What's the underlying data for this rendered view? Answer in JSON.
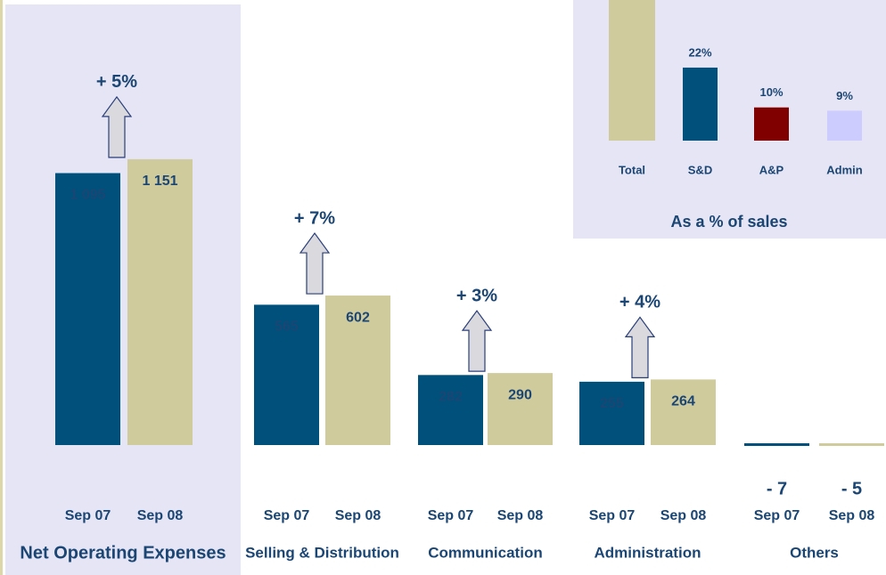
{
  "chart_data": [
    {
      "type": "bar",
      "categories": [
        "Net Operating Expenses",
        "Selling & Distribution",
        "Communication",
        "Administration",
        "Others"
      ],
      "series": [
        {
          "name": "Sep 07",
          "color": "#00507c",
          "values": [
            1095,
            565,
            282,
            255,
            -7
          ],
          "value_labels": [
            "1 095",
            "565",
            "282",
            "255",
            "- 7"
          ]
        },
        {
          "name": "Sep 08",
          "color": "#cfcb9d",
          "values": [
            1151,
            602,
            290,
            264,
            -5
          ],
          "value_labels": [
            "1 151",
            "602",
            "290",
            "264",
            "- 5"
          ]
        }
      ],
      "changes": [
        "+ 5%",
        "+ 7%",
        "+ 3%",
        "+ 4%",
        null
      ]
    },
    {
      "type": "bar",
      "title": "As a % of sales",
      "categories": [
        "Total",
        "S&D",
        "A&P",
        "Admin"
      ],
      "values": [
        43,
        22,
        10,
        9
      ],
      "value_labels": [
        null,
        "22%",
        "10%",
        "9%"
      ],
      "colors": [
        "#cfcb9d",
        "#00507c",
        "#800000",
        "#ccccff"
      ]
    }
  ]
}
